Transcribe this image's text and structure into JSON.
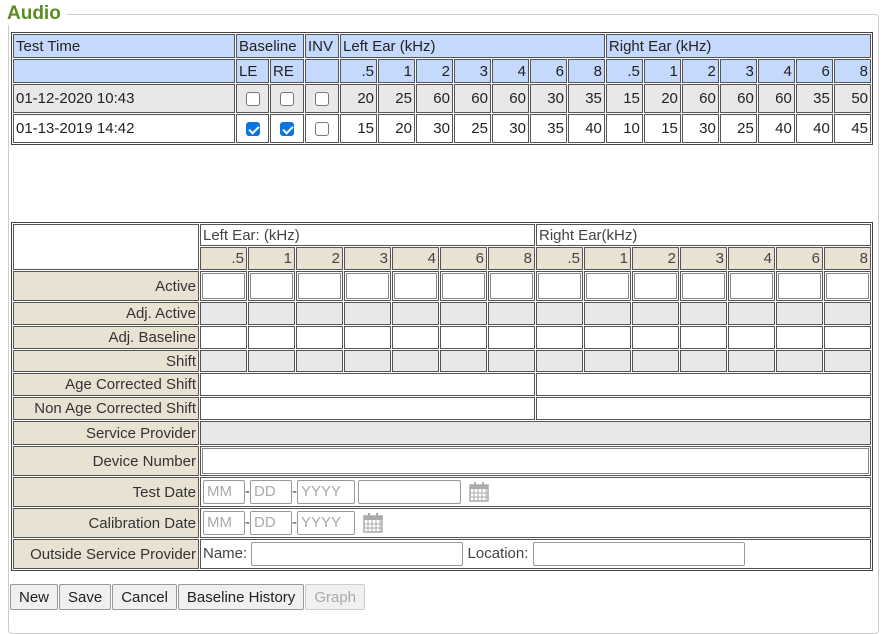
{
  "title": "Audio",
  "history": {
    "headers": {
      "test_time": "Test Time",
      "baseline": "Baseline",
      "inv": "INV",
      "left_ear": "Left Ear (kHz)",
      "right_ear": "Right Ear (kHz)",
      "le": "LE",
      "re": "RE"
    },
    "freqs": [
      ".5",
      "1",
      "2",
      "3",
      "4",
      "6",
      "8"
    ],
    "rows": [
      {
        "time": "01-12-2020 10:43",
        "le": false,
        "re": false,
        "inv": false,
        "left": [
          "20",
          "25",
          "60",
          "60",
          "60",
          "30",
          "35"
        ],
        "right": [
          "15",
          "20",
          "60",
          "60",
          "60",
          "35",
          "50"
        ]
      },
      {
        "time": "01-13-2019 14:42",
        "le": true,
        "re": true,
        "inv": false,
        "left": [
          "15",
          "20",
          "30",
          "25",
          "30",
          "35",
          "40"
        ],
        "right": [
          "10",
          "15",
          "30",
          "25",
          "40",
          "40",
          "45"
        ]
      }
    ]
  },
  "form": {
    "left_ear": "Left Ear: (kHz)",
    "right_ear": "Right Ear(kHz)",
    "rows": {
      "active": "Active",
      "adj_active": "Adj. Active",
      "adj_baseline": "Adj. Baseline",
      "shift": "Shift",
      "age_corrected": "Age Corrected Shift",
      "non_age_corrected": "Non Age Corrected Shift",
      "service_provider": "Service Provider",
      "device_number": "Device Number",
      "test_date": "Test Date",
      "calibration_date": "Calibration Date",
      "outside_provider": "Outside Service Provider"
    },
    "placeholders": {
      "mm": "MM",
      "dd": "DD",
      "yyyy": "YYYY"
    },
    "sep": "-",
    "name_label": "Name:",
    "location_label": "Location:"
  },
  "buttons": {
    "new": "New",
    "save": "Save",
    "cancel": "Cancel",
    "baseline_history": "Baseline History",
    "graph": "Graph"
  },
  "colors": {
    "header": "#c5d9fc",
    "label": "#e9e2d3",
    "legend": "#5b8c1f",
    "checked": "#0b74de"
  }
}
